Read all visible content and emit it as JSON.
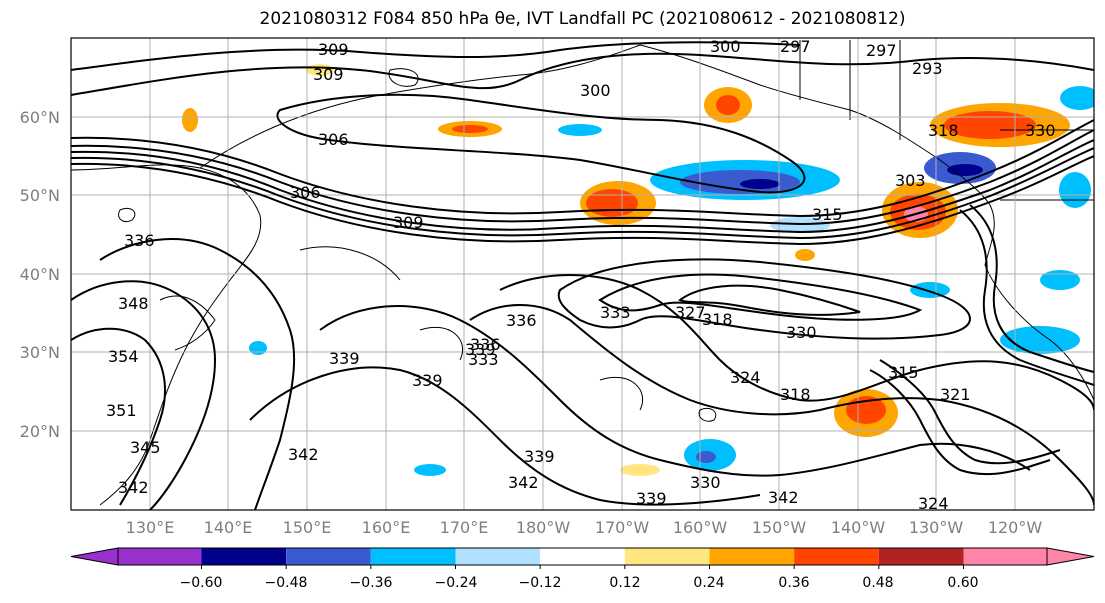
{
  "title": "2021080312 F084 850 hPa θe, IVT Landfall PC (2021080612 - 2021080812)",
  "map": {
    "lon_range": [
      120,
      250
    ],
    "lat_range": [
      10,
      70
    ],
    "grid": true,
    "lat_labels": [
      "20°N",
      "30°N",
      "40°N",
      "50°N",
      "60°N"
    ],
    "lon_labels": [
      "130°E",
      "140°E",
      "150°E",
      "160°E",
      "170°E",
      "180°W",
      "170°W",
      "160°W",
      "150°W",
      "140°W",
      "130°W",
      "120°W"
    ],
    "contour_labels": [
      "309",
      "309",
      "300",
      "300",
      "297",
      "297",
      "293",
      "306",
      "306",
      "309",
      "318",
      "330",
      "303",
      "315",
      "336",
      "348",
      "354",
      "351",
      "345",
      "342",
      "339",
      "336",
      "333",
      "339",
      "339",
      "342",
      "336",
      "333",
      "327",
      "318",
      "330",
      "324",
      "318",
      "315",
      "321",
      "330",
      "339",
      "342",
      "339",
      "342",
      "324"
    ]
  },
  "colorbar": {
    "ticks": [
      "−0.60",
      "−0.48",
      "−0.36",
      "−0.24",
      "−0.12",
      "0.12",
      "0.24",
      "0.36",
      "0.48",
      "0.60"
    ],
    "colors": [
      "#9932cc",
      "#00008b",
      "#3a5bd0",
      "#00bfff",
      "#b0e2ff",
      "#ffffff",
      "#ffe680",
      "#ffa500",
      "#ff4500",
      "#b22222",
      "#ff85a8"
    ]
  }
}
